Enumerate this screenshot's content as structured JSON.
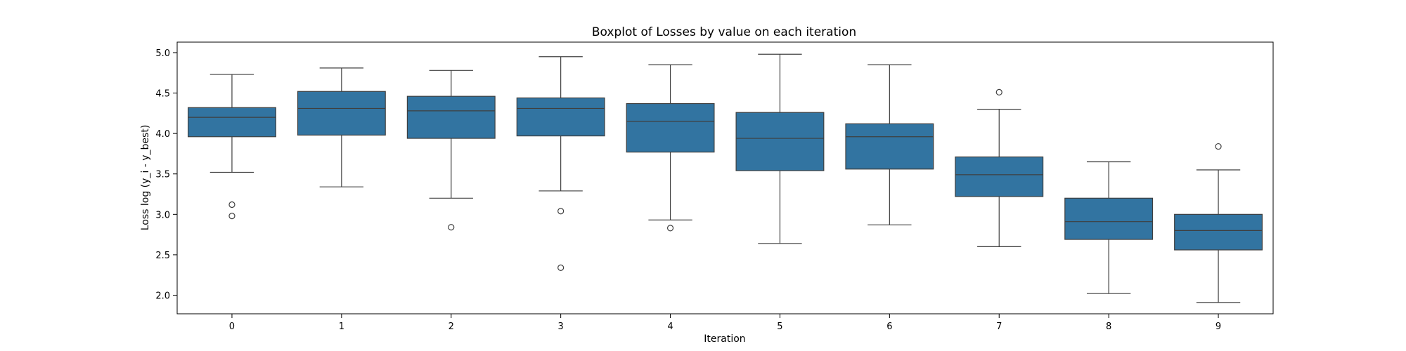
{
  "chart_data": {
    "type": "boxplot",
    "title": "Boxplot of Losses by value on each iteration",
    "xlabel": "Iteration",
    "ylabel": "Loss log (y_i - y_best)",
    "ylim": [
      1.77,
      5.13
    ],
    "yticks": [
      2.0,
      2.5,
      3.0,
      3.5,
      4.0,
      4.5,
      5.0
    ],
    "ytick_labels": [
      "2.0",
      "2.5",
      "3.0",
      "3.5",
      "4.0",
      "4.5",
      "5.0"
    ],
    "categories": [
      "0",
      "1",
      "2",
      "3",
      "4",
      "5",
      "6",
      "7",
      "8",
      "9"
    ],
    "box_color": "#3274a1",
    "line_color": "#3f3f3f",
    "grid": false,
    "legend": "none",
    "boxes": [
      {
        "category": "0",
        "whisker_low": 3.52,
        "q1": 3.96,
        "median": 4.2,
        "q3": 4.32,
        "whisker_high": 4.73,
        "outliers": [
          3.12,
          2.98
        ]
      },
      {
        "category": "1",
        "whisker_low": 3.34,
        "q1": 3.98,
        "median": 4.31,
        "q3": 4.52,
        "whisker_high": 4.81,
        "outliers": []
      },
      {
        "category": "2",
        "whisker_low": 3.2,
        "q1": 3.94,
        "median": 4.28,
        "q3": 4.46,
        "whisker_high": 4.78,
        "outliers": [
          2.84
        ]
      },
      {
        "category": "3",
        "whisker_low": 3.29,
        "q1": 3.97,
        "median": 4.31,
        "q3": 4.44,
        "whisker_high": 4.95,
        "outliers": [
          3.04,
          2.34
        ]
      },
      {
        "category": "4",
        "whisker_low": 2.93,
        "q1": 3.77,
        "median": 4.15,
        "q3": 4.37,
        "whisker_high": 4.85,
        "outliers": [
          2.83
        ]
      },
      {
        "category": "5",
        "whisker_low": 2.64,
        "q1": 3.54,
        "median": 3.94,
        "q3": 4.26,
        "whisker_high": 4.98,
        "outliers": []
      },
      {
        "category": "6",
        "whisker_low": 2.87,
        "q1": 3.56,
        "median": 3.96,
        "q3": 4.12,
        "whisker_high": 4.85,
        "outliers": []
      },
      {
        "category": "7",
        "whisker_low": 2.6,
        "q1": 3.22,
        "median": 3.49,
        "q3": 3.71,
        "whisker_high": 4.3,
        "outliers": [
          4.51
        ]
      },
      {
        "category": "8",
        "whisker_low": 2.02,
        "q1": 2.69,
        "median": 2.91,
        "q3": 3.2,
        "whisker_high": 3.65,
        "outliers": []
      },
      {
        "category": "9",
        "whisker_low": 1.91,
        "q1": 2.56,
        "median": 2.8,
        "q3": 3.0,
        "whisker_high": 3.55,
        "outliers": [
          3.84
        ]
      }
    ]
  }
}
